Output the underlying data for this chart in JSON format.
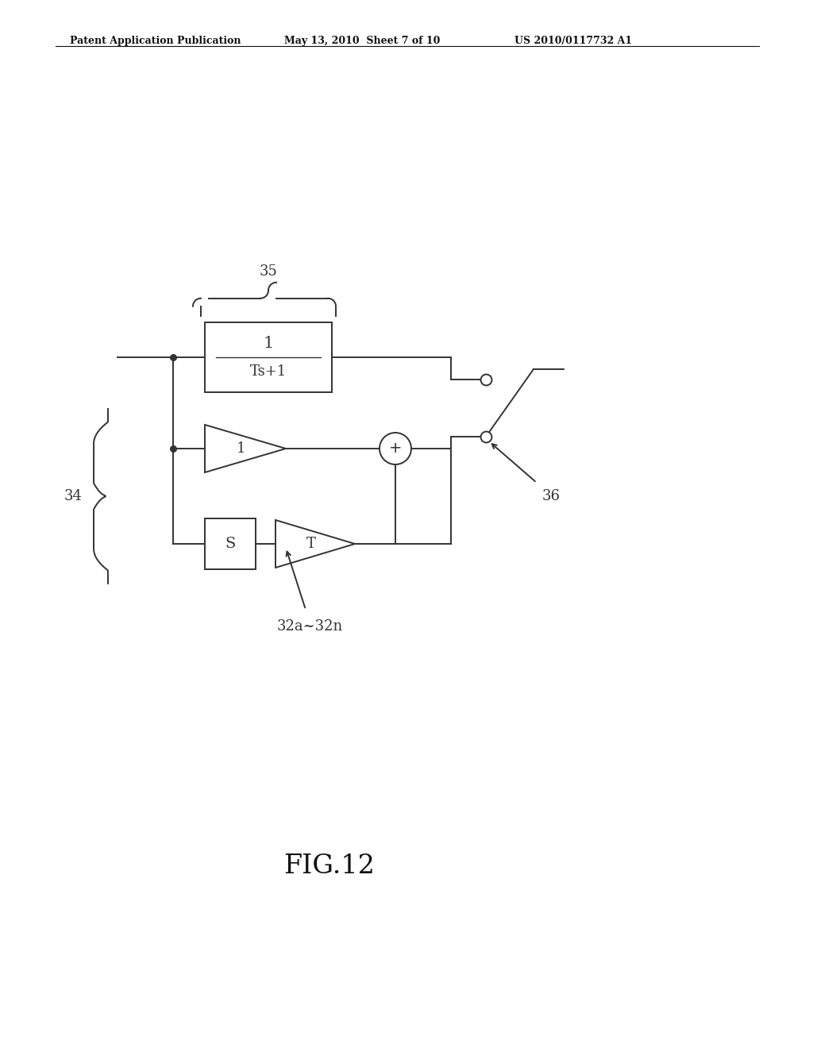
{
  "bg_color": "#ffffff",
  "line_color": "#333333",
  "header_left": "Patent Application Publication",
  "header_mid": "May 13, 2010  Sheet 7 of 10",
  "header_right": "US 2010/0117732 A1",
  "fig_label": "FIG.12",
  "label_35": "35",
  "label_34": "34",
  "label_36": "36",
  "label_32": "32a~32n",
  "filter_top": "1",
  "filter_bot": "Ts+1",
  "amp1_text": "1",
  "box_s_text": "S",
  "amp_t_text": "T"
}
